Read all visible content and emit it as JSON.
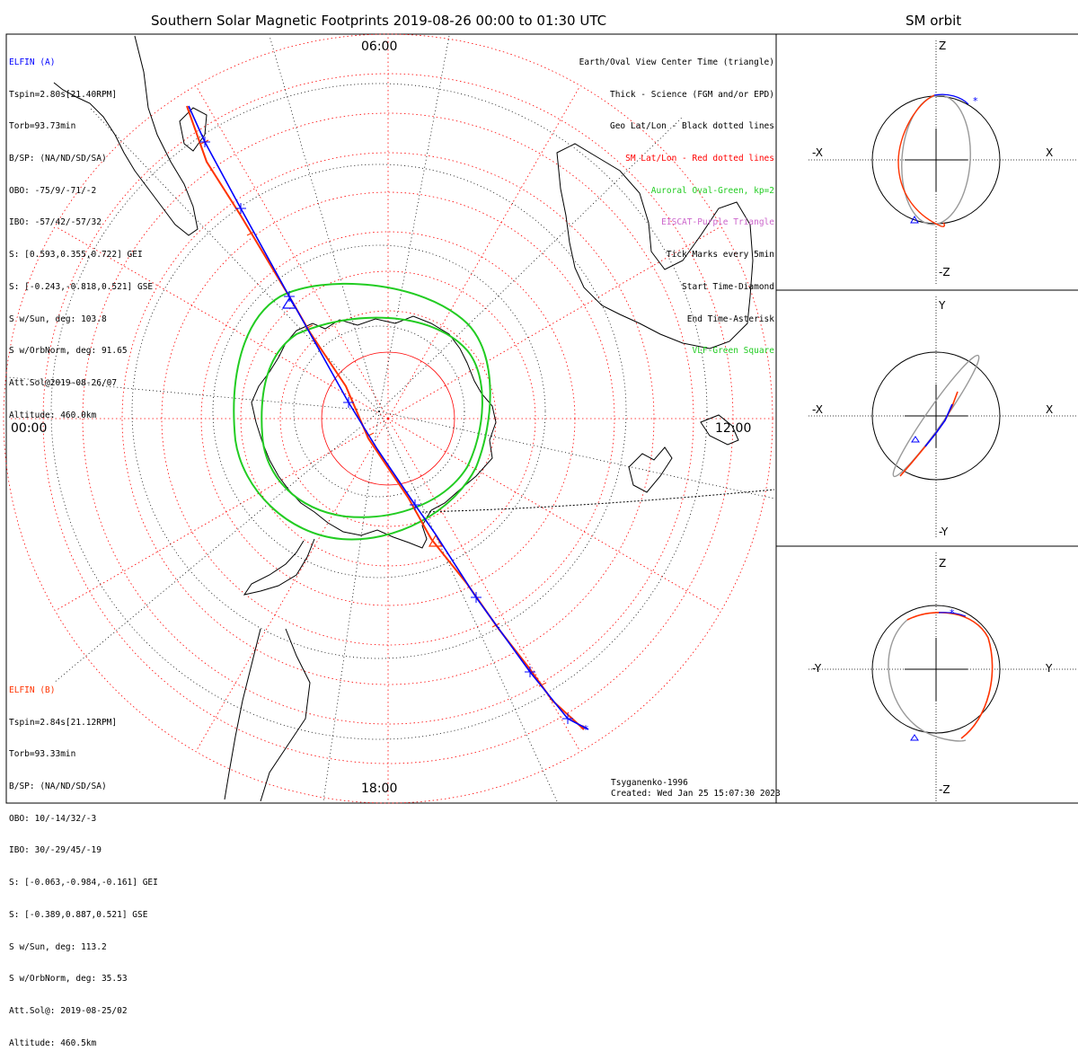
{
  "title": "Southern Solar Magnetic Footprints 2019-08-26 00:00 to 01:30 UTC",
  "orbit_title": "SM orbit",
  "colors": {
    "elfin_a": "#0000ff",
    "elfin_b": "#ff3300",
    "oval": "#22cc22",
    "eiscat": "#cc66cc",
    "vlf": "#22cc22",
    "sm_grid": "#ff0000"
  },
  "hours": {
    "top": "06:00",
    "left": "00:00",
    "right": "12:00",
    "bottom": "18:00"
  },
  "elfin_a": {
    "name": "ELFIN (A)",
    "lines": [
      "Tspin=2.80s[21.40RPM]",
      "Torb=93.73min",
      "B/SP: (NA/ND/SD/SA)",
      "OBO: -75/9/-71/-2",
      "IBO: -57/42/-57/32",
      "S: [0.593,0.355,0.722] GEI",
      "S: [-0.243,-0.818,0.521] GSE",
      "S w/Sun, deg: 103.8",
      "S w/OrbNorm, deg: 91.65",
      "Att.Sol@2019-08-26/07",
      "Altitude: 460.0km"
    ]
  },
  "elfin_b": {
    "name": "ELFIN (B)",
    "lines": [
      "Tspin=2.84s[21.12RPM]",
      "Torb=93.33min",
      "B/SP: (NA/ND/SD/SA)",
      "OBO: 10/-14/32/-3",
      "IBO: 30/-29/45/-19",
      "S: [-0.063,-0.984,-0.161] GEI",
      "S: [-0.389,0.887,0.521] GSE",
      "S w/Sun, deg: 113.2",
      "S w/OrbNorm, deg: 35.53",
      "Att.Sol@: 2019-08-25/02",
      "Altitude: 460.5km"
    ]
  },
  "legend": [
    {
      "text": "Earth/Oval View Center Time (triangle)",
      "color": "#000000"
    },
    {
      "text": "Thick - Science (FGM and/or EPD)",
      "color": "#000000"
    },
    {
      "text": "Geo Lat/Lon - Black dotted lines",
      "color": "#000000"
    },
    {
      "text": "SM Lat/Lon - Red dotted lines",
      "color": "#ff0000"
    },
    {
      "text": "Auroral Oval-Green, kp=2",
      "color": "#22cc22"
    },
    {
      "text": "EISCAT-Purple Triangle",
      "color": "#cc66cc"
    },
    {
      "text": "Tick Marks every 5min",
      "color": "#000000"
    },
    {
      "text": "Start Time-Diamond",
      "color": "#000000"
    },
    {
      "text": "End Time-Asterisk",
      "color": "#000000"
    },
    {
      "text": "VLF-Green Square",
      "color": "#22cc22"
    }
  ],
  "model": "Tsyganenko-1996",
  "created": "Created: Wed Jan 25 15:07:30 2023",
  "orbit_panels": [
    {
      "top": "Z",
      "bottom": "-Z",
      "left": "-X",
      "right": "X"
    },
    {
      "top": "Y",
      "bottom": "-Y",
      "left": "-X",
      "right": "X"
    },
    {
      "top": "Z",
      "bottom": "-Z",
      "left": "-Y",
      "right": "Y"
    }
  ]
}
